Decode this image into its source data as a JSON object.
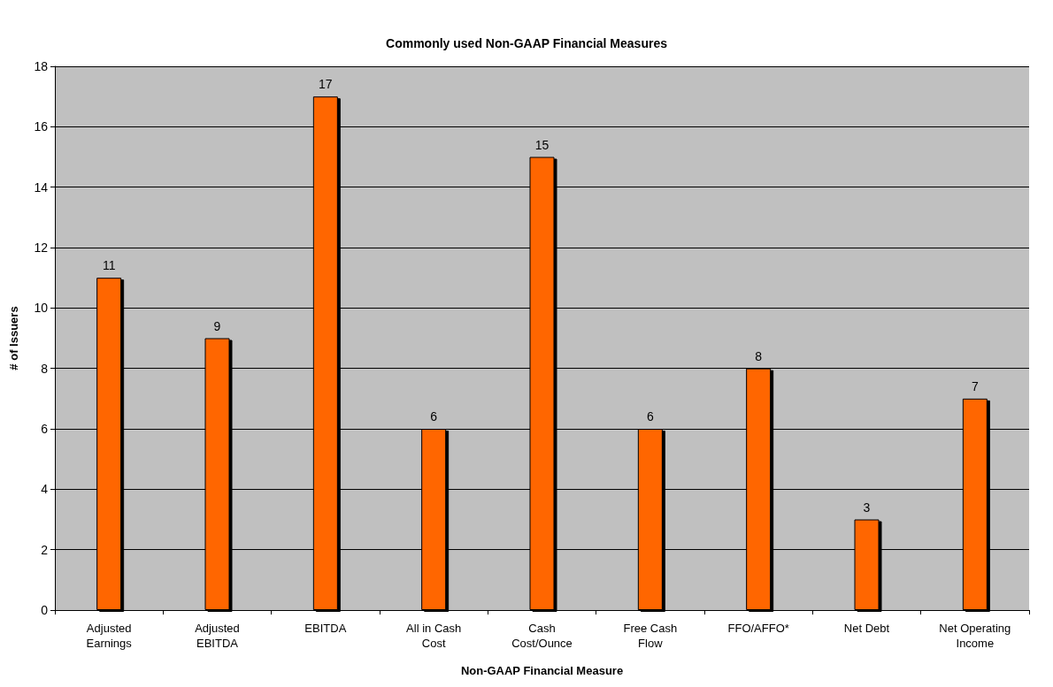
{
  "chart_data": {
    "type": "bar",
    "title": "Commonly used Non-GAAP Financial Measures",
    "xlabel": "Non-GAAP Financial Measure",
    "ylabel": "# of Issuers",
    "categories": [
      "Adjusted Earnings",
      "Adjusted EBITDA",
      "EBITDA",
      "All in Cash Cost",
      "Cash Cost/Ounce",
      "Free Cash Flow",
      "FFO/AFFO*",
      "Net Debt",
      "Net Operating Income"
    ],
    "values": [
      11,
      9,
      17,
      6,
      15,
      6,
      8,
      3,
      7
    ],
    "color": "#ff6600",
    "ylim": [
      0,
      18
    ],
    "yticks": [
      0,
      2,
      4,
      6,
      8,
      10,
      12,
      14,
      16,
      18
    ],
    "grid": "y",
    "data_labels": true
  }
}
